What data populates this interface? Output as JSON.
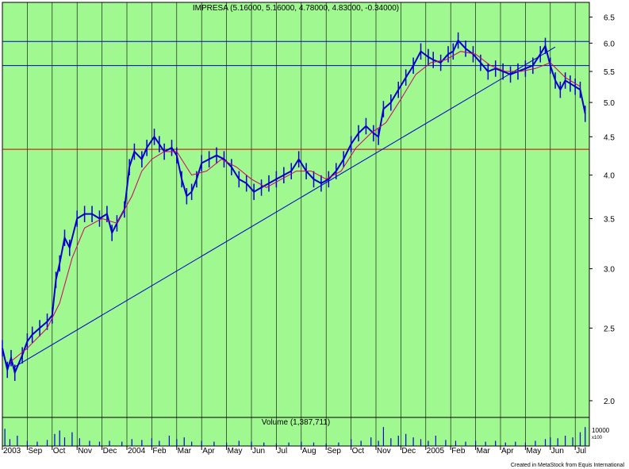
{
  "chart_data": {
    "type": "line",
    "title": "IMPRESA (5.16000, 5.16000, 4.78000, 4.83000, -0.34000)",
    "volume_label": "Volume (1,387,711)",
    "credit": "Created in MetaStock from Equis International",
    "background_color": "#a0f890",
    "price_line_color": "#0000cc",
    "ma_line_color": "#cc0066",
    "scale": "log",
    "ylim": [
      1.9,
      6.8
    ],
    "y_ticks": [
      {
        "value": 2.0,
        "label": "2.0"
      },
      {
        "value": 2.5,
        "label": "2.5"
      },
      {
        "value": 3.0,
        "label": "3.0"
      },
      {
        "value": 3.5,
        "label": "3.5"
      },
      {
        "value": 4.0,
        "label": "4.0"
      },
      {
        "value": 4.5,
        "label": "4.5"
      },
      {
        "value": 5.0,
        "label": "5.0"
      },
      {
        "value": 5.5,
        "label": "5.5"
      },
      {
        "value": 6.0,
        "label": "6.0"
      },
      {
        "value": 6.5,
        "label": "6.5"
      }
    ],
    "volume_ticks": [
      {
        "label": "10000"
      },
      {
        "label": "x100"
      }
    ],
    "x_ticks": [
      {
        "index": 0,
        "label": "2003"
      },
      {
        "index": 1,
        "label": "Sep"
      },
      {
        "index": 2,
        "label": "Oct"
      },
      {
        "index": 3,
        "label": "Nov"
      },
      {
        "index": 4,
        "label": "Dec"
      },
      {
        "index": 5,
        "label": "2004"
      },
      {
        "index": 6,
        "label": "Feb"
      },
      {
        "index": 7,
        "label": "Mar"
      },
      {
        "index": 8,
        "label": "Apr"
      },
      {
        "index": 9,
        "label": "May"
      },
      {
        "index": 10,
        "label": "Jun"
      },
      {
        "index": 11,
        "label": "Jul"
      },
      {
        "index": 12,
        "label": "Aug"
      },
      {
        "index": 13,
        "label": "Sep"
      },
      {
        "index": 14,
        "label": "Oct"
      },
      {
        "index": 15,
        "label": "Nov"
      },
      {
        "index": 16,
        "label": "Dec"
      },
      {
        "index": 17,
        "label": "2005"
      },
      {
        "index": 18,
        "label": "Feb"
      },
      {
        "index": 19,
        "label": "Mar"
      },
      {
        "index": 20,
        "label": "Apr"
      },
      {
        "index": 21,
        "label": "May"
      },
      {
        "index": 22,
        "label": "Jun"
      },
      {
        "index": 23,
        "label": "Jul"
      }
    ],
    "price": [
      [
        0.0,
        2.35
      ],
      [
        0.2,
        2.2
      ],
      [
        0.35,
        2.28
      ],
      [
        0.5,
        2.18
      ],
      [
        0.8,
        2.3
      ],
      [
        1.0,
        2.4
      ],
      [
        1.2,
        2.45
      ],
      [
        1.5,
        2.5
      ],
      [
        1.8,
        2.55
      ],
      [
        2.0,
        2.6
      ],
      [
        2.15,
        2.9
      ],
      [
        2.3,
        3.05
      ],
      [
        2.5,
        3.3
      ],
      [
        2.7,
        3.2
      ],
      [
        3.0,
        3.5
      ],
      [
        3.3,
        3.55
      ],
      [
        3.6,
        3.55
      ],
      [
        3.9,
        3.5
      ],
      [
        4.2,
        3.55
      ],
      [
        4.4,
        3.35
      ],
      [
        4.6,
        3.45
      ],
      [
        4.9,
        3.6
      ],
      [
        5.1,
        4.1
      ],
      [
        5.3,
        4.3
      ],
      [
        5.6,
        4.2
      ],
      [
        5.8,
        4.35
      ],
      [
        6.1,
        4.5
      ],
      [
        6.3,
        4.4
      ],
      [
        6.5,
        4.3
      ],
      [
        6.8,
        4.35
      ],
      [
        7.0,
        4.25
      ],
      [
        7.2,
        3.95
      ],
      [
        7.4,
        3.75
      ],
      [
        7.6,
        3.8
      ],
      [
        7.8,
        3.95
      ],
      [
        8.0,
        4.15
      ],
      [
        8.3,
        4.2
      ],
      [
        8.6,
        4.25
      ],
      [
        8.9,
        4.2
      ],
      [
        9.2,
        4.1
      ],
      [
        9.5,
        3.95
      ],
      [
        9.8,
        3.9
      ],
      [
        10.1,
        3.8
      ],
      [
        10.4,
        3.85
      ],
      [
        10.7,
        3.9
      ],
      [
        11.0,
        3.95
      ],
      [
        11.3,
        4.0
      ],
      [
        11.6,
        4.05
      ],
      [
        11.9,
        4.2
      ],
      [
        12.2,
        4.05
      ],
      [
        12.5,
        3.95
      ],
      [
        12.8,
        3.9
      ],
      [
        13.1,
        3.95
      ],
      [
        13.4,
        4.05
      ],
      [
        13.7,
        4.2
      ],
      [
        14.0,
        4.4
      ],
      [
        14.3,
        4.55
      ],
      [
        14.6,
        4.65
      ],
      [
        14.9,
        4.55
      ],
      [
        15.1,
        4.5
      ],
      [
        15.3,
        4.9
      ],
      [
        15.6,
        5.0
      ],
      [
        15.9,
        5.2
      ],
      [
        16.2,
        5.4
      ],
      [
        16.5,
        5.6
      ],
      [
        16.8,
        5.85
      ],
      [
        17.1,
        5.75
      ],
      [
        17.3,
        5.7
      ],
      [
        17.6,
        5.65
      ],
      [
        17.9,
        5.8
      ],
      [
        18.1,
        5.85
      ],
      [
        18.3,
        6.05
      ],
      [
        18.6,
        5.9
      ],
      [
        18.9,
        5.8
      ],
      [
        19.2,
        5.65
      ],
      [
        19.5,
        5.5
      ],
      [
        19.8,
        5.55
      ],
      [
        20.1,
        5.5
      ],
      [
        20.4,
        5.45
      ],
      [
        20.7,
        5.5
      ],
      [
        21.0,
        5.55
      ],
      [
        21.3,
        5.6
      ],
      [
        21.6,
        5.8
      ],
      [
        21.8,
        5.95
      ],
      [
        22.0,
        5.6
      ],
      [
        22.2,
        5.35
      ],
      [
        22.4,
        5.2
      ],
      [
        22.6,
        5.35
      ],
      [
        22.8,
        5.3
      ],
      [
        23.0,
        5.25
      ],
      [
        23.2,
        5.2
      ],
      [
        23.4,
        4.83
      ]
    ],
    "moving_average": [
      [
        0.3,
        2.25
      ],
      [
        1.0,
        2.35
      ],
      [
        1.8,
        2.5
      ],
      [
        2.3,
        2.7
      ],
      [
        2.8,
        3.1
      ],
      [
        3.3,
        3.4
      ],
      [
        4.0,
        3.5
      ],
      [
        4.6,
        3.45
      ],
      [
        5.2,
        3.75
      ],
      [
        5.6,
        4.05
      ],
      [
        6.0,
        4.2
      ],
      [
        6.5,
        4.3
      ],
      [
        7.0,
        4.3
      ],
      [
        7.6,
        4.0
      ],
      [
        8.2,
        4.05
      ],
      [
        8.8,
        4.2
      ],
      [
        9.4,
        4.1
      ],
      [
        10.0,
        3.95
      ],
      [
        10.6,
        3.85
      ],
      [
        11.2,
        3.95
      ],
      [
        11.8,
        4.05
      ],
      [
        12.4,
        4.05
      ],
      [
        13.0,
        3.95
      ],
      [
        13.6,
        4.05
      ],
      [
        14.2,
        4.35
      ],
      [
        14.8,
        4.55
      ],
      [
        15.4,
        4.7
      ],
      [
        16.0,
        5.05
      ],
      [
        16.6,
        5.45
      ],
      [
        17.2,
        5.65
      ],
      [
        17.8,
        5.7
      ],
      [
        18.4,
        5.85
      ],
      [
        19.0,
        5.8
      ],
      [
        19.6,
        5.6
      ],
      [
        20.2,
        5.5
      ],
      [
        20.8,
        5.5
      ],
      [
        21.4,
        5.55
      ],
      [
        22.0,
        5.65
      ],
      [
        22.6,
        5.4
      ],
      [
        23.2,
        5.25
      ]
    ],
    "horizontal_lines": [
      {
        "value": 6.03,
        "color": "#0000cc"
      },
      {
        "value": 5.6,
        "color": "#0000cc"
      },
      {
        "value": 4.33,
        "color": "#cc0000"
      }
    ],
    "trendline": {
      "from": [
        0.5,
        2.22
      ],
      "to": [
        22.2,
        5.93
      ],
      "color": "#0000cc"
    },
    "volume": [
      [
        0.1,
        20
      ],
      [
        0.3,
        8
      ],
      [
        0.6,
        12
      ],
      [
        1.0,
        6
      ],
      [
        1.4,
        5
      ],
      [
        1.8,
        7
      ],
      [
        2.1,
        14
      ],
      [
        2.3,
        18
      ],
      [
        2.5,
        10
      ],
      [
        2.8,
        16
      ],
      [
        3.1,
        9
      ],
      [
        3.5,
        6
      ],
      [
        3.9,
        5
      ],
      [
        4.3,
        6
      ],
      [
        4.8,
        5
      ],
      [
        5.2,
        8
      ],
      [
        5.6,
        7
      ],
      [
        6.0,
        9
      ],
      [
        6.3,
        6
      ],
      [
        6.7,
        12
      ],
      [
        7.0,
        8
      ],
      [
        7.3,
        10
      ],
      [
        7.6,
        5
      ],
      [
        8.0,
        6
      ],
      [
        8.5,
        5
      ],
      [
        9.0,
        4
      ],
      [
        9.5,
        6
      ],
      [
        10.0,
        5
      ],
      [
        10.5,
        4
      ],
      [
        11.0,
        3
      ],
      [
        11.5,
        4
      ],
      [
        12.0,
        5
      ],
      [
        12.5,
        4
      ],
      [
        13.0,
        3
      ],
      [
        13.5,
        4
      ],
      [
        14.0,
        8
      ],
      [
        14.4,
        6
      ],
      [
        14.8,
        10
      ],
      [
        15.1,
        6
      ],
      [
        15.3,
        22
      ],
      [
        15.6,
        9
      ],
      [
        15.9,
        12
      ],
      [
        16.2,
        14
      ],
      [
        16.5,
        10
      ],
      [
        16.8,
        8
      ],
      [
        17.1,
        6
      ],
      [
        17.4,
        12
      ],
      [
        17.8,
        7
      ],
      [
        18.2,
        6
      ],
      [
        18.6,
        5
      ],
      [
        19.0,
        6
      ],
      [
        19.4,
        5
      ],
      [
        19.8,
        6
      ],
      [
        20.2,
        4
      ],
      [
        20.6,
        5
      ],
      [
        21.0,
        4
      ],
      [
        21.4,
        6
      ],
      [
        21.8,
        8
      ],
      [
        22.0,
        10
      ],
      [
        22.3,
        9
      ],
      [
        22.6,
        12
      ],
      [
        22.9,
        10
      ],
      [
        23.2,
        16
      ],
      [
        23.4,
        22
      ]
    ],
    "volume_ylim": [
      0,
      24
    ],
    "grid": true,
    "legend": "none"
  }
}
